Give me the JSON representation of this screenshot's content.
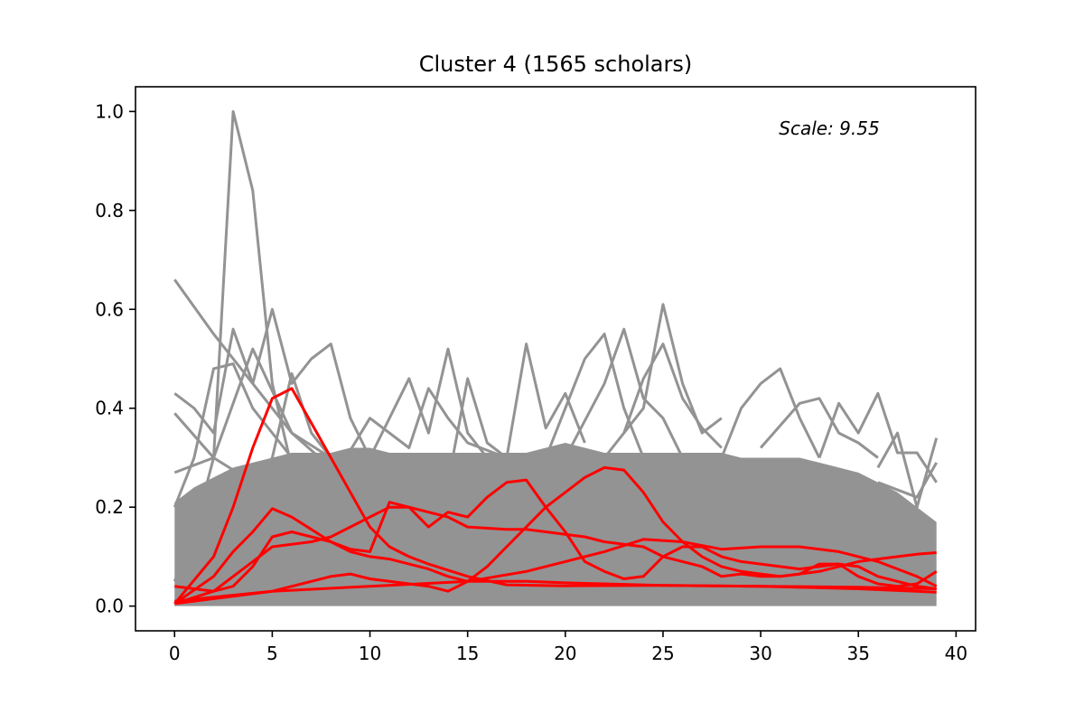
{
  "chart_data": {
    "type": "line",
    "title": "Cluster 4 (1565 scholars)",
    "annotation": "Scale: 9.55",
    "xlabel": "",
    "ylabel": "",
    "xlim": [
      -2,
      41
    ],
    "ylim": [
      -0.05,
      1.05
    ],
    "x_ticks": [
      0,
      5,
      10,
      15,
      20,
      25,
      30,
      35,
      40
    ],
    "y_ticks": [
      0.0,
      0.2,
      0.4,
      0.6,
      0.8,
      1.0
    ],
    "x_tick_labels": [
      "0",
      "5",
      "10",
      "15",
      "20",
      "25",
      "30",
      "35",
      "40"
    ],
    "y_tick_labels": [
      "0.0",
      "0.2",
      "0.4",
      "0.6",
      "0.8",
      "1.0"
    ],
    "grid": false,
    "background_series_count": 1565,
    "background_series_color": "#939393",
    "highlight_color": "#ff0000",
    "x_values": "0-39",
    "background_band": {
      "lower": 0.0,
      "upper": [
        0.21,
        0.24,
        0.26,
        0.28,
        0.29,
        0.3,
        0.31,
        0.31,
        0.31,
        0.32,
        0.32,
        0.31,
        0.31,
        0.31,
        0.31,
        0.31,
        0.31,
        0.31,
        0.31,
        0.32,
        0.33,
        0.32,
        0.31,
        0.31,
        0.31,
        0.31,
        0.31,
        0.31,
        0.31,
        0.3,
        0.3,
        0.3,
        0.3,
        0.29,
        0.28,
        0.27,
        0.25,
        0.23,
        0.2,
        0.17
      ]
    },
    "outlier_series": [
      {
        "points": [
          [
            0,
            0.05
          ],
          [
            1,
            0.15
          ],
          [
            2,
            0.3
          ],
          [
            3,
            1.0
          ],
          [
            4,
            0.84
          ],
          [
            5,
            0.45
          ],
          [
            6,
            0.28
          ],
          [
            7,
            0.22
          ],
          [
            8,
            0.18
          ],
          [
            9,
            0.15
          ],
          [
            10,
            0.14
          ]
        ]
      },
      {
        "points": [
          [
            0,
            0.66
          ],
          [
            2,
            0.55
          ],
          [
            4,
            0.45
          ],
          [
            6,
            0.35
          ],
          [
            8,
            0.28
          ],
          [
            10,
            0.25
          ]
        ]
      },
      {
        "points": [
          [
            0,
            0.2
          ],
          [
            1,
            0.3
          ],
          [
            2,
            0.48
          ],
          [
            3,
            0.49
          ],
          [
            4,
            0.4
          ],
          [
            6,
            0.3
          ],
          [
            8,
            0.25
          ]
        ]
      },
      {
        "points": [
          [
            0,
            0.43
          ],
          [
            1,
            0.4
          ],
          [
            2,
            0.35
          ],
          [
            3,
            0.56
          ],
          [
            4,
            0.45
          ],
          [
            5,
            0.6
          ],
          [
            6,
            0.45
          ],
          [
            7,
            0.5
          ],
          [
            8,
            0.53
          ],
          [
            9,
            0.38
          ],
          [
            10,
            0.3
          ]
        ]
      },
      {
        "points": [
          [
            0,
            0.39
          ],
          [
            2,
            0.3
          ],
          [
            4,
            0.52
          ],
          [
            6,
            0.35
          ],
          [
            8,
            0.3
          ]
        ]
      },
      {
        "points": [
          [
            0,
            0.27
          ],
          [
            2,
            0.3
          ],
          [
            4,
            0.25
          ],
          [
            5,
            0.3
          ],
          [
            6,
            0.47
          ],
          [
            7,
            0.35
          ],
          [
            8,
            0.3
          ]
        ]
      },
      {
        "points": [
          [
            8,
            0.25
          ],
          [
            10,
            0.38
          ],
          [
            12,
            0.32
          ],
          [
            13,
            0.44
          ],
          [
            14,
            0.38
          ],
          [
            15,
            0.33
          ],
          [
            17,
            0.3
          ]
        ]
      },
      {
        "points": [
          [
            10,
            0.3
          ],
          [
            12,
            0.46
          ],
          [
            13,
            0.35
          ],
          [
            14,
            0.52
          ],
          [
            15,
            0.35
          ],
          [
            16,
            0.3
          ]
        ]
      },
      {
        "points": [
          [
            14,
            0.25
          ],
          [
            15,
            0.46
          ],
          [
            16,
            0.33
          ],
          [
            17,
            0.3
          ],
          [
            18,
            0.53
          ],
          [
            19,
            0.36
          ],
          [
            20,
            0.43
          ],
          [
            21,
            0.33
          ]
        ]
      },
      {
        "points": [
          [
            19,
            0.3
          ],
          [
            21,
            0.5
          ],
          [
            22,
            0.55
          ],
          [
            23,
            0.4
          ],
          [
            24,
            0.3
          ]
        ]
      },
      {
        "points": [
          [
            20,
            0.3
          ],
          [
            22,
            0.45
          ],
          [
            23,
            0.56
          ],
          [
            24,
            0.42
          ],
          [
            25,
            0.38
          ],
          [
            26,
            0.3
          ]
        ]
      },
      {
        "points": [
          [
            22,
            0.3
          ],
          [
            24,
            0.4
          ],
          [
            25,
            0.61
          ],
          [
            26,
            0.45
          ],
          [
            27,
            0.35
          ],
          [
            28,
            0.38
          ]
        ]
      },
      {
        "points": [
          [
            23,
            0.35
          ],
          [
            24,
            0.46
          ],
          [
            25,
            0.53
          ],
          [
            26,
            0.42
          ],
          [
            27,
            0.36
          ],
          [
            28,
            0.32
          ]
        ]
      },
      {
        "points": [
          [
            28,
            0.3
          ],
          [
            29,
            0.4
          ],
          [
            30,
            0.45
          ],
          [
            31,
            0.48
          ],
          [
            32,
            0.38
          ],
          [
            33,
            0.3
          ]
        ]
      },
      {
        "points": [
          [
            30,
            0.32
          ],
          [
            32,
            0.41
          ],
          [
            33,
            0.42
          ],
          [
            34,
            0.35
          ],
          [
            35,
            0.33
          ],
          [
            36,
            0.3
          ]
        ]
      },
      {
        "points": [
          [
            33,
            0.3
          ],
          [
            34,
            0.41
          ],
          [
            35,
            0.35
          ],
          [
            36,
            0.43
          ],
          [
            37,
            0.31
          ],
          [
            38,
            0.31
          ],
          [
            39,
            0.25
          ]
        ]
      },
      {
        "points": [
          [
            36,
            0.28
          ],
          [
            37,
            0.35
          ],
          [
            38,
            0.2
          ],
          [
            39,
            0.34
          ]
        ]
      },
      {
        "points": [
          [
            36,
            0.25
          ],
          [
            38,
            0.22
          ],
          [
            39,
            0.29
          ]
        ]
      }
    ],
    "series": [
      {
        "points": [
          [
            0,
            0.005
          ],
          [
            2,
            0.1
          ],
          [
            3,
            0.2
          ],
          [
            4,
            0.32
          ],
          [
            5,
            0.42
          ],
          [
            6,
            0.44
          ],
          [
            7,
            0.37
          ],
          [
            8,
            0.3
          ],
          [
            9,
            0.23
          ],
          [
            10,
            0.16
          ],
          [
            11,
            0.12
          ],
          [
            12,
            0.1
          ],
          [
            13,
            0.085
          ],
          [
            15,
            0.06
          ],
          [
            17,
            0.043
          ],
          [
            20,
            0.041
          ],
          [
            25,
            0.042
          ],
          [
            30,
            0.04
          ],
          [
            35,
            0.035
          ],
          [
            39,
            0.028
          ]
        ]
      },
      {
        "points": [
          [
            0,
            0.005
          ],
          [
            2,
            0.06
          ],
          [
            3,
            0.11
          ],
          [
            4,
            0.15
          ],
          [
            5,
            0.197
          ],
          [
            6,
            0.18
          ],
          [
            7,
            0.155
          ],
          [
            8,
            0.13
          ],
          [
            9,
            0.11
          ],
          [
            10,
            0.1
          ],
          [
            11,
            0.095
          ],
          [
            12,
            0.085
          ],
          [
            13,
            0.075
          ],
          [
            14,
            0.06
          ],
          [
            15,
            0.05
          ],
          [
            16,
            0.05
          ],
          [
            17,
            0.05
          ],
          [
            18,
            0.05
          ],
          [
            20,
            0.047
          ],
          [
            25,
            0.042
          ],
          [
            30,
            0.04
          ],
          [
            35,
            0.038
          ],
          [
            39,
            0.035
          ]
        ]
      },
      {
        "points": [
          [
            0,
            0.005
          ],
          [
            2,
            0.03
          ],
          [
            4,
            0.09
          ],
          [
            5,
            0.12
          ],
          [
            6,
            0.125
          ],
          [
            7,
            0.13
          ],
          [
            8,
            0.14
          ],
          [
            9,
            0.16
          ],
          [
            10,
            0.18
          ],
          [
            11,
            0.2
          ],
          [
            12,
            0.2
          ],
          [
            13,
            0.19
          ],
          [
            14,
            0.18
          ],
          [
            15,
            0.16
          ],
          [
            17,
            0.155
          ],
          [
            18,
            0.155
          ],
          [
            19,
            0.15
          ],
          [
            20,
            0.145
          ],
          [
            21,
            0.14
          ],
          [
            22,
            0.13
          ],
          [
            23,
            0.125
          ],
          [
            24,
            0.12
          ],
          [
            25,
            0.1
          ],
          [
            26,
            0.09
          ],
          [
            27,
            0.08
          ],
          [
            28,
            0.06
          ],
          [
            29,
            0.065
          ],
          [
            30,
            0.06
          ],
          [
            31,
            0.06
          ],
          [
            32,
            0.065
          ],
          [
            33,
            0.085
          ],
          [
            34,
            0.085
          ],
          [
            35,
            0.08
          ],
          [
            36,
            0.06
          ],
          [
            37,
            0.05
          ],
          [
            38,
            0.04
          ],
          [
            39,
            0.035
          ]
        ]
      },
      {
        "points": [
          [
            0,
            0.04
          ],
          [
            1,
            0.035
          ],
          [
            2,
            0.03
          ],
          [
            3,
            0.04
          ],
          [
            4,
            0.08
          ],
          [
            5,
            0.14
          ],
          [
            6,
            0.15
          ],
          [
            7,
            0.14
          ],
          [
            8,
            0.13
          ],
          [
            9,
            0.115
          ],
          [
            10,
            0.11
          ],
          [
            11,
            0.21
          ],
          [
            12,
            0.2
          ],
          [
            13,
            0.16
          ],
          [
            14,
            0.19
          ],
          [
            15,
            0.18
          ],
          [
            16,
            0.22
          ],
          [
            17,
            0.25
          ],
          [
            18,
            0.255
          ],
          [
            19,
            0.2
          ],
          [
            20,
            0.15
          ],
          [
            21,
            0.09
          ],
          [
            22,
            0.07
          ],
          [
            23,
            0.055
          ],
          [
            24,
            0.06
          ],
          [
            25,
            0.1
          ],
          [
            26,
            0.12
          ],
          [
            27,
            0.12
          ],
          [
            28,
            0.1
          ],
          [
            29,
            0.09
          ],
          [
            30,
            0.085
          ],
          [
            31,
            0.08
          ],
          [
            32,
            0.075
          ],
          [
            33,
            0.08
          ],
          [
            34,
            0.085
          ],
          [
            35,
            0.06
          ],
          [
            36,
            0.045
          ],
          [
            37,
            0.04
          ],
          [
            38,
            0.045
          ],
          [
            39,
            0.07
          ]
        ]
      },
      {
        "points": [
          [
            0,
            0.005
          ],
          [
            3,
            0.02
          ],
          [
            5,
            0.03
          ],
          [
            7,
            0.05
          ],
          [
            8,
            0.06
          ],
          [
            9,
            0.065
          ],
          [
            10,
            0.055
          ],
          [
            11,
            0.05
          ],
          [
            12,
            0.045
          ],
          [
            13,
            0.04
          ],
          [
            14,
            0.03
          ],
          [
            15,
            0.05
          ],
          [
            16,
            0.08
          ],
          [
            17,
            0.12
          ],
          [
            18,
            0.16
          ],
          [
            19,
            0.2
          ],
          [
            20,
            0.23
          ],
          [
            21,
            0.26
          ],
          [
            22,
            0.28
          ],
          [
            23,
            0.275
          ],
          [
            24,
            0.23
          ],
          [
            25,
            0.17
          ],
          [
            26,
            0.13
          ],
          [
            27,
            0.1
          ],
          [
            28,
            0.08
          ],
          [
            29,
            0.07
          ],
          [
            30,
            0.065
          ],
          [
            31,
            0.06
          ],
          [
            32,
            0.065
          ],
          [
            33,
            0.07
          ],
          [
            34,
            0.08
          ],
          [
            35,
            0.09
          ],
          [
            36,
            0.095
          ],
          [
            37,
            0.1
          ],
          [
            38,
            0.105
          ],
          [
            39,
            0.108
          ]
        ]
      },
      {
        "points": [
          [
            0,
            0.01
          ],
          [
            5,
            0.03
          ],
          [
            10,
            0.04
          ],
          [
            15,
            0.05
          ],
          [
            18,
            0.07
          ],
          [
            20,
            0.09
          ],
          [
            22,
            0.11
          ],
          [
            24,
            0.135
          ],
          [
            26,
            0.13
          ],
          [
            28,
            0.115
          ],
          [
            30,
            0.12
          ],
          [
            32,
            0.12
          ],
          [
            34,
            0.11
          ],
          [
            36,
            0.09
          ],
          [
            38,
            0.06
          ],
          [
            39,
            0.04
          ]
        ]
      }
    ]
  }
}
